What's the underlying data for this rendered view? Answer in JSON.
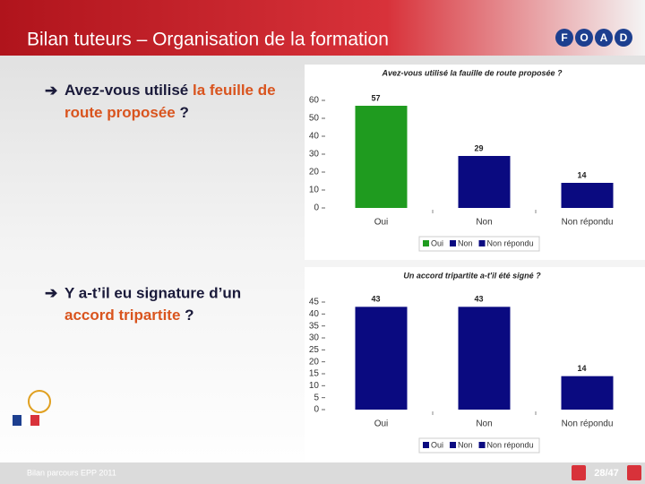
{
  "slide": {
    "title": "Bilan tuteurs – Organisation de la formation",
    "logo": [
      "F",
      "O",
      "A",
      "D"
    ],
    "questions": [
      [
        "Avez-vous utilisé ",
        "la feuille de",
        "route proposée",
        " ?"
      ],
      [
        "Y a-t’il eu signature d’un",
        "accord tripartite",
        " ?"
      ]
    ],
    "footer": "Bilan parcours EPP 2011",
    "page": "28/47"
  },
  "chart_data": [
    {
      "type": "bar",
      "title": "Avez-vous utilisé la fauille de route proposée ?",
      "categories": [
        "Oui",
        "Non",
        "Non répondu"
      ],
      "values": [
        57,
        29,
        14
      ],
      "colors": [
        "#1f9b1f",
        "#0a0a80",
        "#0a0a80"
      ],
      "ylim": [
        0,
        60
      ],
      "yticks": [
        0,
        10,
        20,
        30,
        40,
        50,
        60
      ],
      "legend": true
    },
    {
      "type": "bar",
      "title": "Un accord tripartite a-t'il été signé ?",
      "categories": [
        "Oui",
        "Non",
        "Non répondu"
      ],
      "values": [
        43,
        43,
        14
      ],
      "colors": [
        "#0a0a80",
        "#0a0a80",
        "#0a0a80"
      ],
      "ylim": [
        0,
        45
      ],
      "yticks": [
        0,
        5,
        10,
        15,
        20,
        25,
        30,
        35,
        40,
        45
      ],
      "legend": true
    }
  ]
}
